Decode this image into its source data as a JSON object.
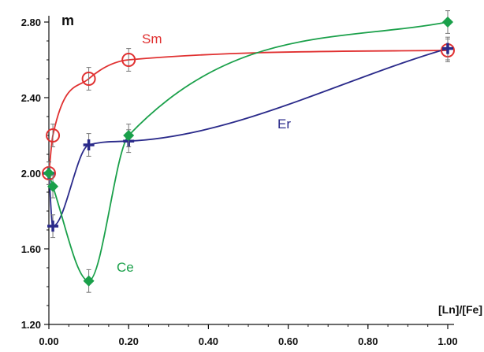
{
  "chart_data": {
    "type": "scatter",
    "ylabel": "m",
    "xlabel": "[Ln]/[Fe]",
    "xlim": [
      0,
      1
    ],
    "ylim": [
      1.2,
      2.8
    ],
    "x_ticks": [
      "0.00",
      "0.20",
      "0.40",
      "0.60",
      "0.80",
      "1.00"
    ],
    "y_ticks": [
      "1.20",
      "1.60",
      "2.00",
      "2.40",
      "2.80"
    ],
    "series": [
      {
        "name": "Sm",
        "color": "#e03030",
        "marker": "open-circle",
        "x": [
          0.0,
          0.01,
          0.1,
          0.2,
          1.0
        ],
        "y": [
          2.0,
          2.2,
          2.5,
          2.6,
          2.65
        ],
        "yerr": [
          0.06,
          0.06,
          0.06,
          0.06,
          0.06
        ]
      },
      {
        "name": "Er",
        "color": "#2a2a8a",
        "marker": "plus",
        "x": [
          0.0,
          0.01,
          0.1,
          0.2,
          1.0
        ],
        "y": [
          2.0,
          1.72,
          2.15,
          2.17,
          2.66
        ],
        "yerr": [
          0.06,
          0.06,
          0.06,
          0.06,
          0.06
        ]
      },
      {
        "name": "Ce",
        "color": "#1aa04a",
        "marker": "filled-diamond",
        "x": [
          0.0,
          0.01,
          0.1,
          0.2,
          1.0
        ],
        "y": [
          2.0,
          1.93,
          1.43,
          2.2,
          2.8
        ],
        "yerr": [
          0.06,
          0.06,
          0.06,
          0.06,
          0.06
        ]
      }
    ],
    "grid": false,
    "legend": "inline labels near curves"
  }
}
